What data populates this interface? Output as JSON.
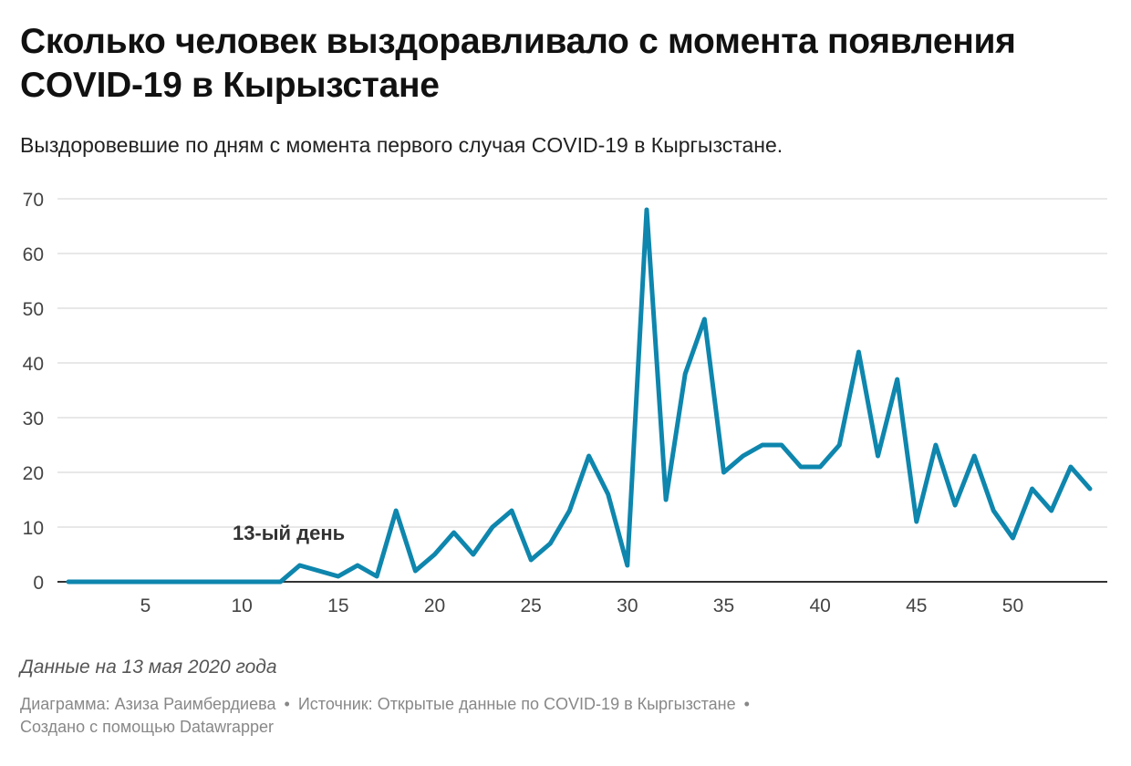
{
  "title": "Сколько человек выздоравливало с момента появления COVID-19 в Кырызстане",
  "subtitle": "Выздоровевшие по дням с момента первого случая COVID-19 в Кыргызстане.",
  "note": "Данные на 13 мая 2020 года",
  "footer": {
    "chart_by": "Диаграмма: Азиза Раимбердиева",
    "source": "Источник: Открытые данные по COVID-19 в Кыргызстане",
    "separator": "•",
    "made_with": "Создано с помощью Datawrapper"
  },
  "colors": {
    "line": "#0e86ad",
    "grid": "#d9d9d9",
    "axis": "#333333",
    "tick_text": "#444444"
  },
  "chart_data": {
    "type": "line",
    "x_ticks": [
      5,
      10,
      15,
      20,
      25,
      30,
      35,
      40,
      45,
      50
    ],
    "y_ticks": [
      0,
      10,
      20,
      30,
      40,
      50,
      60,
      70
    ],
    "xlim": [
      1,
      54
    ],
    "ylim": [
      0,
      70
    ],
    "grid": "horizontal",
    "x": [
      1,
      2,
      3,
      4,
      5,
      6,
      7,
      8,
      9,
      10,
      11,
      12,
      13,
      14,
      15,
      16,
      17,
      18,
      19,
      20,
      21,
      22,
      23,
      24,
      25,
      26,
      27,
      28,
      29,
      30,
      31,
      32,
      33,
      34,
      35,
      36,
      37,
      38,
      39,
      40,
      41,
      42,
      43,
      44,
      45,
      46,
      47,
      48,
      49,
      50,
      51,
      52,
      53,
      54
    ],
    "values": [
      0,
      0,
      0,
      0,
      0,
      0,
      0,
      0,
      0,
      0,
      0,
      0,
      3,
      2,
      1,
      3,
      1,
      13,
      2,
      5,
      9,
      5,
      10,
      13,
      4,
      7,
      13,
      23,
      16,
      3,
      68,
      15,
      38,
      48,
      20,
      23,
      25,
      25,
      21,
      21,
      25,
      42,
      23,
      37,
      11,
      25,
      14,
      23,
      13,
      8,
      17,
      13,
      21,
      17
    ],
    "annotations": [
      {
        "text": "13-ый день",
        "x": 13,
        "y": 0
      }
    ]
  }
}
